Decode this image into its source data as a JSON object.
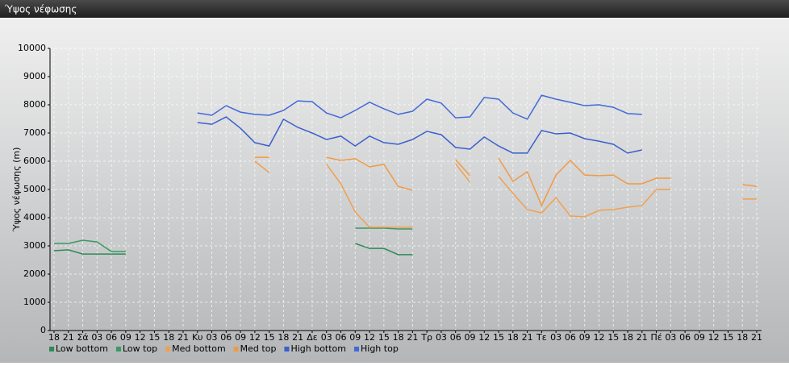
{
  "chart_data": {
    "type": "line",
    "title": "Ύψος νέφωσης",
    "y_label": "Ύψος νέφωσης (m)",
    "categories": [
      "18",
      "21",
      "Σά",
      "03",
      "06",
      "09",
      "12",
      "15",
      "18",
      "21",
      "Κυ",
      "03",
      "06",
      "09",
      "12",
      "15",
      "18",
      "21",
      "Δε",
      "03",
      "06",
      "09",
      "12",
      "15",
      "18",
      "21",
      "Τρ",
      "03",
      "06",
      "09",
      "12",
      "15",
      "18",
      "21",
      "Τε",
      "03",
      "06",
      "09",
      "12",
      "15",
      "18",
      "21",
      "Πέ",
      "03",
      "06",
      "09",
      "12",
      "15",
      "18",
      "21"
    ],
    "ylim": [
      0,
      10000
    ],
    "yticks": [
      0,
      1000,
      2000,
      3000,
      4000,
      5000,
      6000,
      7000,
      8000,
      9000,
      10000
    ],
    "grid": true,
    "series": [
      {
        "name": "Low bottom",
        "color": "#2e8b57",
        "values": [
          2830,
          2860,
          2710,
          2710,
          2710,
          2710,
          null,
          null,
          null,
          null,
          null,
          null,
          null,
          null,
          null,
          null,
          null,
          null,
          null,
          null,
          null,
          3086,
          2910,
          2910,
          2690,
          2690,
          null,
          null,
          null,
          null,
          null,
          null,
          null,
          null,
          null,
          null,
          null,
          null,
          null,
          null,
          null,
          null,
          null,
          null,
          null,
          null,
          null,
          null,
          null,
          null
        ]
      },
      {
        "name": "Low top",
        "color": "#3a9a60",
        "values": [
          3086,
          3086,
          3200,
          3140,
          2800,
          2800,
          null,
          null,
          null,
          null,
          null,
          null,
          null,
          null,
          null,
          null,
          null,
          null,
          null,
          null,
          null,
          3630,
          3630,
          3630,
          3600,
          3600,
          null,
          null,
          null,
          null,
          null,
          null,
          null,
          null,
          null,
          null,
          null,
          null,
          null,
          null,
          null,
          null,
          null,
          null,
          null,
          null,
          null,
          null,
          null,
          null
        ]
      },
      {
        "name": "Med bottom",
        "color": "#f0a050",
        "values": [
          null,
          null,
          null,
          null,
          null,
          null,
          null,
          null,
          null,
          null,
          null,
          null,
          null,
          null,
          6000,
          5600,
          null,
          null,
          null,
          5890,
          5200,
          4200,
          3660,
          3660,
          3660,
          3660,
          null,
          null,
          5910,
          5260,
          null,
          5460,
          4860,
          4290,
          4170,
          4710,
          4060,
          4030,
          4260,
          4290,
          4370,
          4430,
          5000,
          5000,
          null,
          null,
          null,
          null,
          4660,
          4660
        ]
      },
      {
        "name": "Med top",
        "color": "#f09a45",
        "values": [
          null,
          null,
          null,
          null,
          null,
          null,
          null,
          null,
          null,
          null,
          null,
          null,
          null,
          null,
          6140,
          6140,
          null,
          null,
          null,
          6140,
          6030,
          6090,
          5800,
          5890,
          5110,
          4970,
          null,
          null,
          6060,
          5490,
          null,
          6110,
          5290,
          5630,
          4430,
          5510,
          6030,
          5510,
          5490,
          5510,
          5200,
          5200,
          5400,
          5400,
          null,
          null,
          null,
          null,
          5170,
          5110
        ]
      },
      {
        "name": "High bottom",
        "color": "#3a5fcd",
        "values": [
          null,
          null,
          null,
          null,
          null,
          null,
          null,
          null,
          null,
          null,
          7370,
          7310,
          7570,
          7170,
          6660,
          6540,
          7490,
          7200,
          7000,
          6770,
          6890,
          6540,
          6890,
          6660,
          6600,
          6770,
          7060,
          6940,
          6490,
          6430,
          6860,
          6540,
          6290,
          6290,
          7090,
          6970,
          7000,
          6800,
          6710,
          6600,
          6290,
          6400,
          null,
          null,
          null,
          null,
          null,
          null,
          null,
          null
        ]
      },
      {
        "name": "High top",
        "color": "#4169d8",
        "values": [
          null,
          null,
          null,
          null,
          null,
          null,
          null,
          null,
          null,
          null,
          7710,
          7630,
          7970,
          7740,
          7660,
          7630,
          7800,
          8140,
          8110,
          7710,
          7540,
          7800,
          8090,
          7860,
          7660,
          7770,
          8200,
          8060,
          7540,
          7570,
          8260,
          8200,
          7710,
          7490,
          8340,
          8200,
          8090,
          7970,
          8000,
          7910,
          7690,
          7660,
          null,
          null,
          null,
          null,
          null,
          null,
          null,
          null
        ]
      }
    ]
  }
}
